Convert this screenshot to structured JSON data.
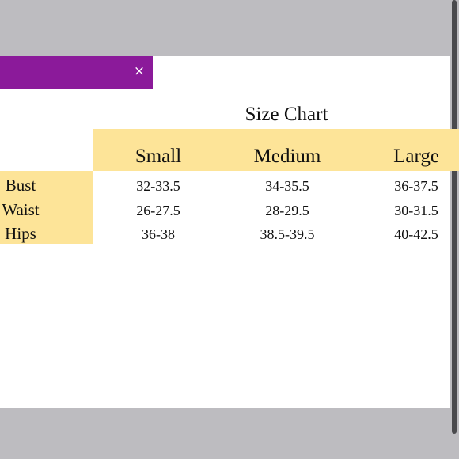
{
  "popup": {
    "close_glyph": "×",
    "accent_color": "#8b1a9a"
  },
  "size_chart": {
    "title": "Size Chart",
    "columns": [
      "Small",
      "Medium",
      "Large"
    ],
    "rows": [
      {
        "label": "Bust",
        "values": [
          "32-33.5",
          "34-35.5",
          "36-37.5"
        ]
      },
      {
        "label": "Waist",
        "values": [
          "26-27.5",
          "28-29.5",
          "30-31.5"
        ]
      },
      {
        "label": "Hips",
        "values": [
          "36-38",
          "38.5-39.5",
          "40-42.5"
        ]
      }
    ],
    "highlight_color": "#fde498"
  }
}
